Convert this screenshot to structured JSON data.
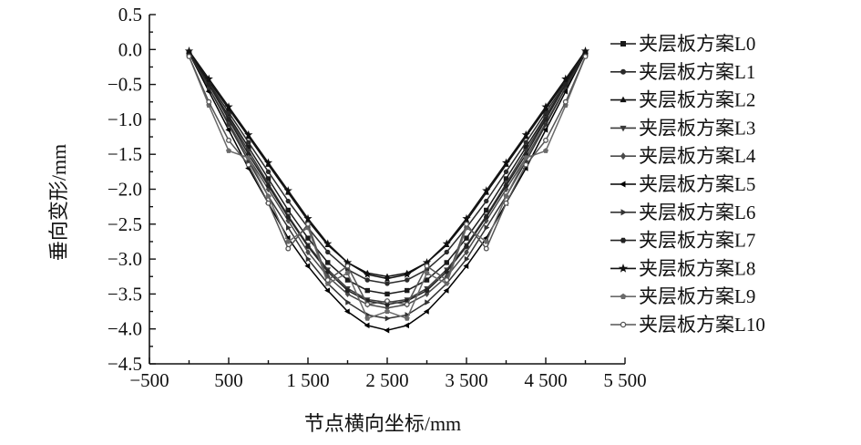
{
  "chart_data": {
    "type": "line",
    "xlabel": "节点横向坐标/mm",
    "ylabel": "垂向变形/mm",
    "xlim": [
      -500,
      5500
    ],
    "ylim": [
      -4.5,
      0.5
    ],
    "grid": false,
    "legend_position": "right",
    "x_ticks": [
      -500,
      500,
      1500,
      2500,
      3500,
      4500,
      5500
    ],
    "x_tick_labels": [
      "−500",
      "500",
      "1 500",
      "2 500",
      "3 500",
      "4 500",
      "5 500"
    ],
    "y_ticks": [
      0.5,
      0.0,
      -0.5,
      -1.0,
      -1.5,
      -2.0,
      -2.5,
      -3.0,
      -3.5,
      -4.0,
      -4.5
    ],
    "y_tick_labels": [
      "0.5",
      "0.0",
      "−0.5",
      "−1.0",
      "−1.5",
      "−2.0",
      "−2.5",
      "−3.0",
      "−3.5",
      "−4.0",
      "−4.5"
    ],
    "x": [
      0,
      250,
      500,
      750,
      1000,
      1250,
      1500,
      1750,
      2000,
      2250,
      2500,
      2750,
      3000,
      3250,
      3500,
      3750,
      4000,
      4250,
      4500,
      4750,
      5000
    ],
    "series": [
      {
        "name": "夹层板方案L0",
        "marker": "square",
        "color": "#1a1a1a",
        "values": [
          -0.05,
          -0.5,
          -0.95,
          -1.4,
          -1.85,
          -2.3,
          -2.7,
          -3.05,
          -3.3,
          -3.45,
          -3.5,
          -3.45,
          -3.3,
          -3.05,
          -2.7,
          -2.3,
          -1.85,
          -1.4,
          -0.95,
          -0.5,
          -0.05
        ]
      },
      {
        "name": "夹层板方案L1",
        "marker": "circle",
        "color": "#2b2b2b",
        "values": [
          -0.05,
          -0.48,
          -0.9,
          -1.33,
          -1.75,
          -2.17,
          -2.55,
          -2.9,
          -3.15,
          -3.3,
          -3.35,
          -3.3,
          -3.15,
          -2.9,
          -2.55,
          -2.17,
          -1.75,
          -1.33,
          -0.9,
          -0.48,
          -0.05
        ]
      },
      {
        "name": "夹层板方案L2",
        "marker": "triangle-up",
        "color": "#111111",
        "values": [
          -0.05,
          -0.45,
          -0.85,
          -1.25,
          -1.65,
          -2.05,
          -2.45,
          -2.8,
          -3.05,
          -3.2,
          -3.25,
          -3.2,
          -3.05,
          -2.8,
          -2.45,
          -2.05,
          -1.65,
          -1.25,
          -0.85,
          -0.45,
          -0.05
        ]
      },
      {
        "name": "夹层板方案L3",
        "marker": "triangle-down",
        "color": "#3a3a3a",
        "values": [
          -0.05,
          -0.5,
          -0.98,
          -1.45,
          -1.92,
          -2.38,
          -2.8,
          -3.15,
          -3.42,
          -3.58,
          -3.62,
          -3.58,
          -3.42,
          -3.15,
          -2.8,
          -2.38,
          -1.92,
          -1.45,
          -0.98,
          -0.5,
          -0.05
        ]
      },
      {
        "name": "夹层板方案L4",
        "marker": "diamond",
        "color": "#4a4a4a",
        "values": [
          -0.05,
          -0.55,
          -1.05,
          -1.55,
          -2.0,
          -2.45,
          -2.9,
          -3.25,
          -3.5,
          -3.65,
          -3.7,
          -3.65,
          -3.5,
          -3.25,
          -2.9,
          -2.45,
          -2.0,
          -1.55,
          -1.05,
          -0.55,
          -0.05
        ]
      },
      {
        "name": "夹层板方案L5",
        "marker": "triangle-left",
        "color": "#000000",
        "values": [
          -0.05,
          -0.6,
          -1.15,
          -1.7,
          -2.2,
          -2.7,
          -3.1,
          -3.45,
          -3.75,
          -3.95,
          -4.02,
          -3.95,
          -3.75,
          -3.45,
          -3.1,
          -2.7,
          -2.2,
          -1.7,
          -1.15,
          -0.6,
          -0.05
        ]
      },
      {
        "name": "夹层板方案L6",
        "marker": "triangle-right",
        "color": "#333333",
        "values": [
          -0.05,
          -0.55,
          -1.08,
          -1.6,
          -2.1,
          -2.55,
          -3.0,
          -3.35,
          -3.62,
          -3.8,
          -3.85,
          -3.8,
          -3.62,
          -3.35,
          -3.0,
          -2.55,
          -2.1,
          -1.6,
          -1.08,
          -0.55,
          -0.05
        ]
      },
      {
        "name": "夹层板方案L7",
        "marker": "hexagon",
        "color": "#222222",
        "values": [
          -0.05,
          -0.5,
          -1.0,
          -1.5,
          -1.95,
          -2.4,
          -2.82,
          -3.18,
          -3.45,
          -3.6,
          -3.65,
          -3.6,
          -3.45,
          -3.18,
          -2.82,
          -2.4,
          -1.95,
          -1.5,
          -1.0,
          -0.5,
          -0.05
        ]
      },
      {
        "name": "夹层板方案L8",
        "marker": "star",
        "color": "#111111",
        "values": [
          -0.02,
          -0.42,
          -0.82,
          -1.22,
          -1.62,
          -2.02,
          -2.42,
          -2.78,
          -3.05,
          -3.22,
          -3.28,
          -3.22,
          -3.05,
          -2.78,
          -2.42,
          -2.02,
          -1.62,
          -1.22,
          -0.82,
          -0.42,
          -0.02
        ]
      },
      {
        "name": "夹层板方案L9",
        "marker": "pentagon",
        "color": "#6a6a6a",
        "values": [
          -0.1,
          -0.8,
          -1.45,
          -1.55,
          -2.1,
          -2.75,
          -2.55,
          -3.35,
          -3.2,
          -3.85,
          -3.75,
          -3.85,
          -3.2,
          -3.35,
          -2.55,
          -2.75,
          -2.1,
          -1.55,
          -1.45,
          -0.8,
          -0.1
        ]
      },
      {
        "name": "夹层板方案L10",
        "marker": "circle-open",
        "color": "#555555",
        "values": [
          -0.1,
          -0.75,
          -1.3,
          -1.65,
          -2.2,
          -2.85,
          -2.5,
          -3.3,
          -3.1,
          -3.65,
          -3.6,
          -3.65,
          -3.1,
          -3.3,
          -2.5,
          -2.85,
          -2.2,
          -1.65,
          -1.3,
          -0.75,
          -0.1
        ]
      }
    ]
  }
}
